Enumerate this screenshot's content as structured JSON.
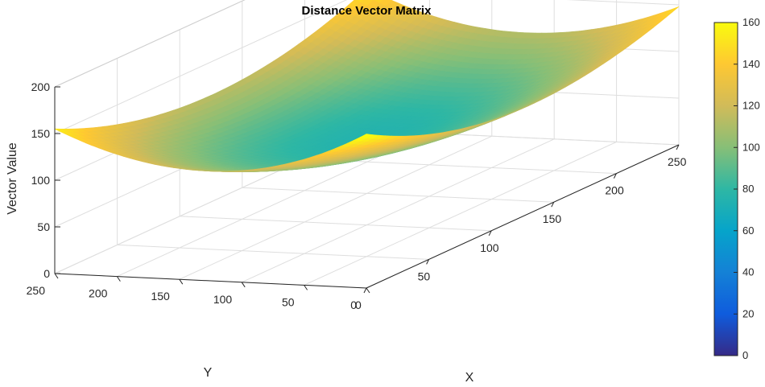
{
  "chart_data": {
    "type": "surface",
    "title": "Distance Vector Matrix",
    "xlabel": "X",
    "ylabel": "Y",
    "zlabel": "Vector Value",
    "xlim": [
      0,
      250
    ],
    "ylim": [
      0,
      250
    ],
    "zlim": [
      0,
      200
    ],
    "x_ticks": [
      "0",
      "50",
      "100",
      "150",
      "200",
      "250"
    ],
    "y_ticks": [
      "0",
      "50",
      "100",
      "150",
      "200",
      "250"
    ],
    "z_ticks": [
      "0",
      "50",
      "100",
      "150",
      "200"
    ],
    "colorbar": {
      "range": [
        0,
        160
      ],
      "ticks": [
        "0",
        "20",
        "40",
        "60",
        "80",
        "100",
        "120",
        "140",
        "160"
      ],
      "colormap": "parula"
    },
    "surface": {
      "center": [
        125,
        125
      ],
      "corner_values": {
        "x0_y0": 165,
        "x250_y0": 148,
        "x0_y250": 155,
        "x250_y250": 152
      },
      "edge_midpoint_value": 88,
      "center_value": 75
    },
    "grid": true
  }
}
